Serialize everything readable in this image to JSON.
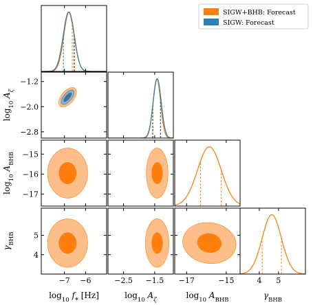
{
  "chart_data": {
    "type": "corner",
    "colors": {
      "orange": "#ff7f0e",
      "orange_light": "#fdbf8a",
      "blue": "#2e7fb3",
      "blue_light": "#7fb7dc",
      "blue_dark": "#4c6e86"
    },
    "legend": {
      "placement": "top-right",
      "entries": [
        {
          "label": "SIGW+BHB: Forecast",
          "color": "#ff7f0e"
        },
        {
          "label": "SIGW: Forecast",
          "color": "#2e7fb3"
        }
      ]
    },
    "parameters": [
      {
        "key": "log10_fstar",
        "label": "log₁₀ f★ [Hz]",
        "range": [
          -8.1,
          -5.0
        ],
        "ticks": [
          -7,
          -6
        ],
        "tick_labels": [
          "−7",
          "−6"
        ]
      },
      {
        "key": "log10_Azeta",
        "label": "log₁₀ A_ζ",
        "range": [
          -3.0,
          -0.9
        ],
        "ticks": [
          -2.5,
          -1.5
        ],
        "tick_labels": [
          "−2.5",
          "−1.5"
        ],
        "row_ticks": [
          -1.2,
          -2.0,
          -2.8
        ],
        "row_tick_labels": [
          "−1.2",
          "−2.0",
          "−2.8"
        ]
      },
      {
        "key": "log10_ABHB",
        "label": "log₁₀ A_BHB",
        "range": [
          -17.6,
          -14.3
        ],
        "ticks": [
          -17,
          -15
        ],
        "tick_labels": [
          "−17",
          "−15"
        ],
        "row_ticks": [
          -15,
          -16,
          -17
        ],
        "row_tick_labels": [
          "−15",
          "−16",
          "−17"
        ]
      },
      {
        "key": "gamma_BHB",
        "label": "γ_BHB",
        "range": [
          3.0,
          6.4
        ],
        "ticks": [
          4,
          5
        ],
        "tick_labels": [
          "4",
          "5"
        ],
        "row_ticks": [
          5,
          4
        ],
        "row_tick_labels": [
          "5",
          "4"
        ]
      }
    ],
    "marginals": [
      {
        "param": "log10_fstar",
        "series": [
          {
            "name": "SIGW+BHB: Forecast",
            "mean": -6.78,
            "sigma": 0.25,
            "q16": -6.63,
            "q84": -6.52
          },
          {
            "name": "SIGW: Forecast",
            "mean": -6.8,
            "sigma": 0.26,
            "q16": -7.05,
            "q84": -6.55
          }
        ]
      },
      {
        "param": "log10_Azeta",
        "series": [
          {
            "name": "SIGW+BHB: Forecast",
            "mean": -1.43,
            "sigma": 0.12,
            "q16": -1.55,
            "q84": -1.32
          },
          {
            "name": "SIGW: Forecast",
            "mean": -1.42,
            "sigma": 0.13,
            "q16": -1.57,
            "q84": -1.31
          }
        ]
      },
      {
        "param": "log10_ABHB",
        "series": [
          {
            "name": "SIGW+BHB: Forecast",
            "mean": -15.85,
            "sigma": 0.6,
            "q16": -16.3,
            "q84": -15.25
          }
        ]
      },
      {
        "param": "gamma_BHB",
        "series": [
          {
            "name": "SIGW+BHB: Forecast",
            "mean": 4.65,
            "sigma": 0.5,
            "q16": 4.15,
            "q84": 5.15
          }
        ]
      }
    ],
    "contours": [
      {
        "row": "log10_Azeta",
        "col": "log10_fstar",
        "series": [
          {
            "name": "SIGW+BHB: Forecast",
            "cx": -6.85,
            "cy": -1.7,
            "rx": 0.55,
            "ry": 0.2,
            "rot": -50,
            "level": "95%"
          },
          {
            "name": "SIGW+BHB: Forecast",
            "cx": -6.85,
            "cy": -1.7,
            "rx": 0.38,
            "ry": 0.12,
            "rot": -50,
            "level": "68%"
          },
          {
            "name": "SIGW: Forecast",
            "cx": -6.85,
            "cy": -1.7,
            "rx": 0.42,
            "ry": 0.13,
            "rot": -50,
            "level": "95%"
          },
          {
            "name": "SIGW: Forecast",
            "cx": -6.85,
            "cy": -1.7,
            "rx": 0.28,
            "ry": 0.07,
            "rot": -50,
            "level": "68%"
          }
        ]
      },
      {
        "row": "log10_ABHB",
        "col": "log10_fstar",
        "series": [
          {
            "name": "SIGW+BHB: Forecast",
            "cx": -6.85,
            "cy": -15.95,
            "rx": 0.95,
            "ry": 1.25,
            "rot": 0,
            "level": "95%"
          },
          {
            "name": "SIGW+BHB: Forecast",
            "cx": -6.85,
            "cy": -15.95,
            "rx": 0.42,
            "ry": 0.55,
            "rot": 0,
            "level": "68%"
          }
        ]
      },
      {
        "row": "log10_ABHB",
        "col": "log10_Azeta",
        "series": [
          {
            "name": "SIGW+BHB: Forecast",
            "cx": -1.42,
            "cy": -15.95,
            "rx": 0.35,
            "ry": 1.25,
            "rot": 0,
            "level": "95%"
          },
          {
            "name": "SIGW+BHB: Forecast",
            "cx": -1.42,
            "cy": -15.95,
            "rx": 0.18,
            "ry": 0.55,
            "rot": 0,
            "level": "68%"
          }
        ]
      },
      {
        "row": "gamma_BHB",
        "col": "log10_fstar",
        "series": [
          {
            "name": "SIGW+BHB: Forecast",
            "cx": -6.85,
            "cy": 4.6,
            "rx": 0.95,
            "ry": 1.25,
            "rot": 0,
            "level": "95%"
          },
          {
            "name": "SIGW+BHB: Forecast",
            "cx": -6.85,
            "cy": 4.6,
            "rx": 0.42,
            "ry": 0.55,
            "rot": 0,
            "level": "68%"
          }
        ]
      },
      {
        "row": "gamma_BHB",
        "col": "log10_Azeta",
        "series": [
          {
            "name": "SIGW+BHB: Forecast",
            "cx": -1.42,
            "cy": 4.6,
            "rx": 0.38,
            "ry": 1.25,
            "rot": 0,
            "level": "95%"
          },
          {
            "name": "SIGW+BHB: Forecast",
            "cx": -1.42,
            "cy": 4.6,
            "rx": 0.18,
            "ry": 0.55,
            "rot": 0,
            "level": "68%"
          }
        ]
      },
      {
        "row": "gamma_BHB",
        "col": "log10_ABHB",
        "series": [
          {
            "name": "SIGW+BHB: Forecast",
            "cx": -15.85,
            "cy": 4.6,
            "rx": 1.35,
            "ry": 1.05,
            "rot": 8,
            "level": "95%"
          },
          {
            "name": "SIGW+BHB: Forecast",
            "cx": -15.85,
            "cy": 4.6,
            "rx": 0.62,
            "ry": 0.5,
            "rot": 8,
            "level": "68%"
          }
        ]
      }
    ]
  }
}
